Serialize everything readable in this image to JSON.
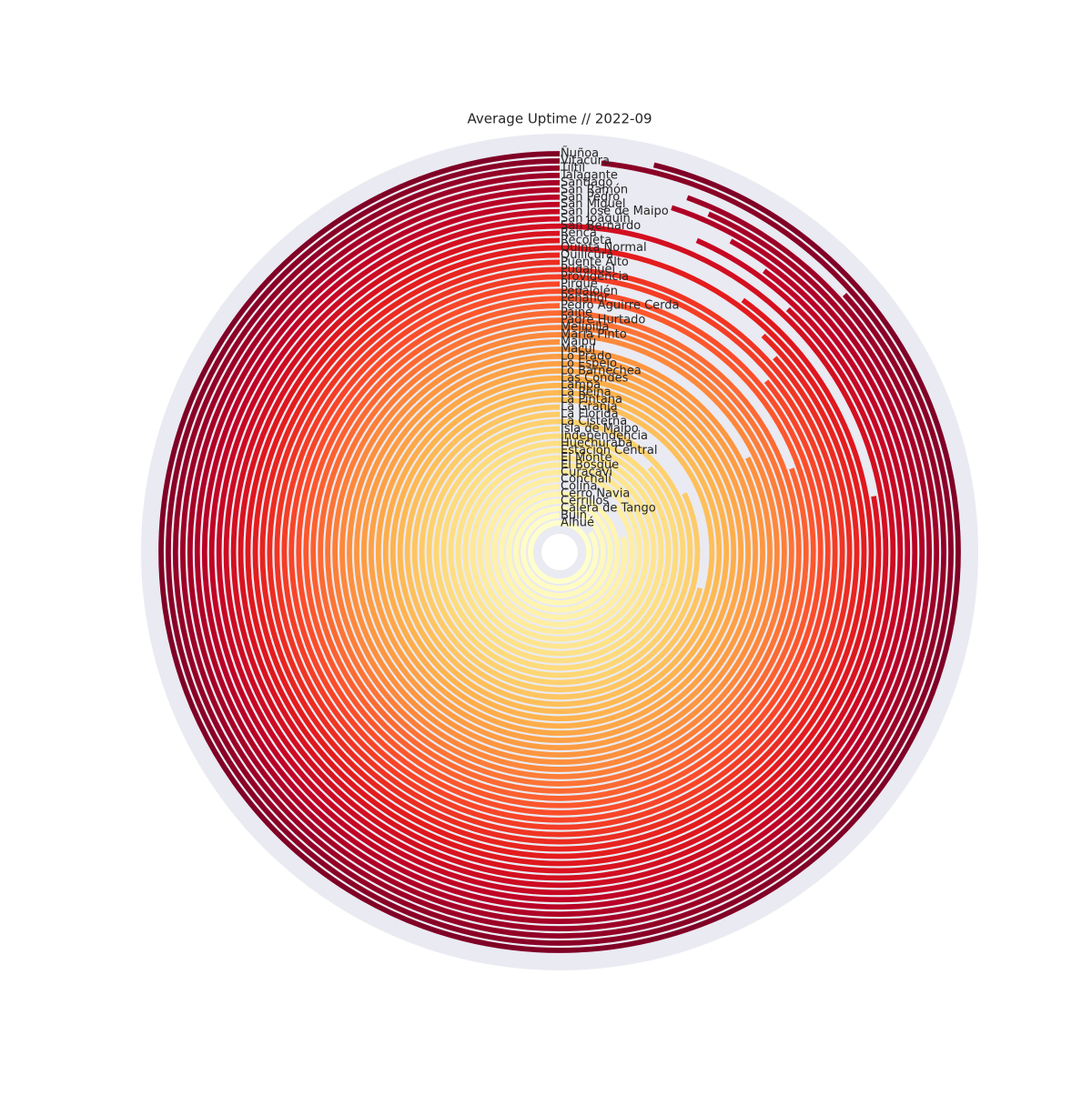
{
  "chart_data": {
    "type": "radial-bar",
    "title": "Average Uptime // 2022-09",
    "categories": [
      "Alhué",
      "Buin",
      "Calera de Tango",
      "Cerrillos",
      "Cerro Navia",
      "Colina",
      "Conchalí",
      "Curacaví",
      "El Bosque",
      "El Monte",
      "Estación Central",
      "Huechuraba",
      "Independencia",
      "Isla de Maipo",
      "La Cisterna",
      "La Florida",
      "La Granja",
      "La Pintana",
      "La Reina",
      "Lampa",
      "Las Condes",
      "Lo Barnechea",
      "Lo Espejo",
      "Lo Prado",
      "Macul",
      "Maipú",
      "María Pinto",
      "Melipilla",
      "Padre Hurtado",
      "Paine",
      "Pedro Aguirre Cerda",
      "Peñaflor",
      "Peñalolén",
      "Pirque",
      "Providencia",
      "Pudahuel",
      "Puente Alto",
      "Quilicura",
      "Quinta Normal",
      "Recoleta",
      "Renca",
      "San Bernardo",
      "San Joaquín",
      "San José de Maipo",
      "San Miguel",
      "San Pedro",
      "San Ramón",
      "Santiago",
      "Talagante",
      "Tiltil",
      "Vitacura",
      "Ñuñoa"
    ],
    "values": [
      100,
      84,
      100,
      100,
      100,
      78.6,
      86,
      100,
      100,
      100,
      100,
      100,
      100,
      87,
      100,
      82,
      71,
      100,
      100,
      100,
      100,
      100,
      100,
      100,
      100,
      82.4,
      100,
      100,
      100,
      100,
      80.5,
      100,
      100,
      86,
      100,
      100,
      86.7,
      88,
      100,
      90,
      77.8,
      100,
      88,
      93.4,
      90,
      92,
      95,
      93.4,
      94.5,
      86.7,
      98.3,
      96.2
    ],
    "xlim": [
      0,
      100
    ],
    "colormap": "YlOrRd"
  }
}
